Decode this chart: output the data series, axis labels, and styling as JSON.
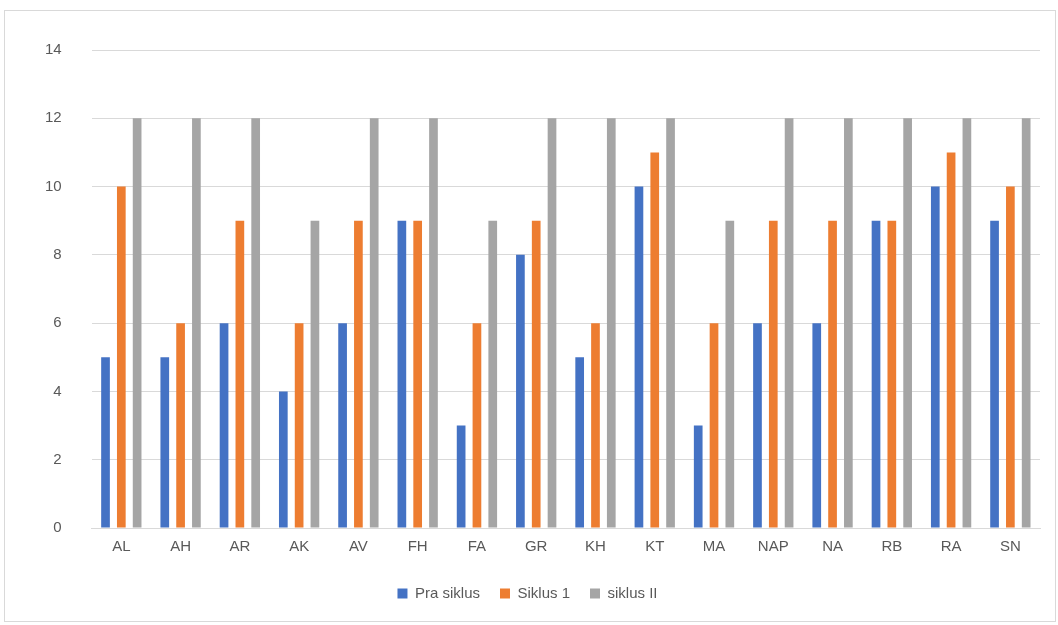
{
  "chart_data": {
    "type": "bar",
    "categories": [
      "AL",
      "AH",
      "AR",
      "AK",
      "AV",
      "FH",
      "FA",
      "GR",
      "KH",
      "KT",
      "MA",
      "NAP",
      "NA",
      "RB",
      "RA",
      "SN"
    ],
    "series": [
      {
        "name": "Pra siklus",
        "color": "#4472c4",
        "values": [
          5,
          5,
          6,
          4,
          6,
          9,
          3,
          8,
          5,
          10,
          3,
          6,
          6,
          9,
          10,
          9
        ]
      },
      {
        "name": "Siklus 1",
        "color": "#ed7d31",
        "values": [
          10,
          6,
          9,
          6,
          9,
          9,
          6,
          9,
          6,
          11,
          6,
          9,
          9,
          9,
          11,
          10
        ]
      },
      {
        "name": "siklus II",
        "color": "#a5a5a5",
        "values": [
          12,
          12,
          12,
          9,
          12,
          12,
          9,
          12,
          12,
          12,
          9,
          12,
          12,
          12,
          12,
          12
        ]
      }
    ],
    "ylim": [
      0,
      14
    ],
    "yticks": [
      0,
      2,
      4,
      6,
      8,
      10,
      12,
      14
    ],
    "grid": "y",
    "legend": "bottom"
  }
}
